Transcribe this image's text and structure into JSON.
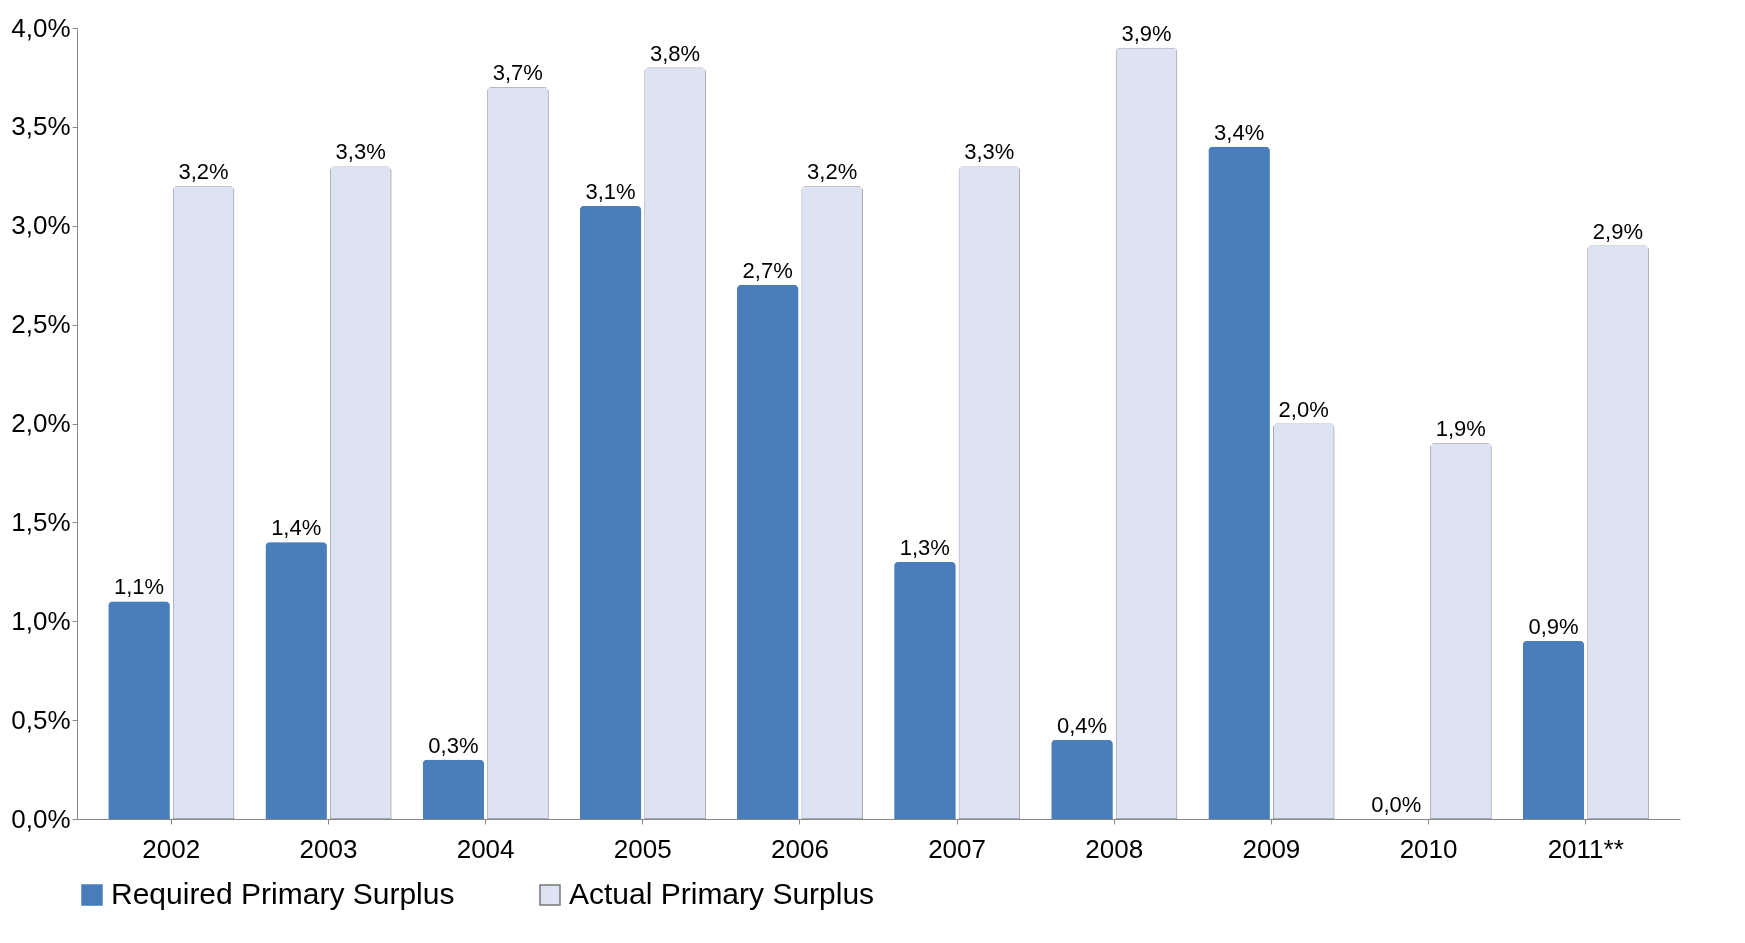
{
  "chart_data": {
    "type": "bar",
    "categories": [
      "2002",
      "2003",
      "2004",
      "2005",
      "2006",
      "2007",
      "2008",
      "2009",
      "2010",
      "2011**"
    ],
    "series": [
      {
        "name": "Required Primary Surplus",
        "color": "#4a7ebb",
        "values": [
          1.1,
          1.4,
          0.3,
          3.1,
          2.7,
          1.3,
          0.4,
          3.4,
          0.0,
          0.9
        ],
        "value_labels": [
          "1,1%",
          "1,4%",
          "0,3%",
          "3,1%",
          "2,7%",
          "1,3%",
          "0,4%",
          "3,4%",
          "0,0%",
          "0,9%"
        ]
      },
      {
        "name": "Actual Primary Surplus",
        "color": "#dde3f2",
        "values": [
          3.2,
          3.3,
          3.7,
          3.8,
          3.2,
          3.3,
          3.9,
          2.0,
          1.9,
          2.9
        ],
        "value_labels": [
          "3,2%",
          "3,3%",
          "3,7%",
          "3,8%",
          "3,2%",
          "3,3%",
          "3,9%",
          "2,0%",
          "1,9%",
          "2,9%"
        ]
      }
    ],
    "ylim": [
      0,
      4
    ],
    "yticks": [
      {
        "value": 0,
        "label": "0,0%"
      },
      {
        "value": 0.5,
        "label": "0,5%"
      },
      {
        "value": 1,
        "label": "1,0%"
      },
      {
        "value": 1.5,
        "label": "1,5%"
      },
      {
        "value": 2,
        "label": "2,0%"
      },
      {
        "value": 2.5,
        "label": "2,5%"
      },
      {
        "value": 3,
        "label": "3,0%"
      },
      {
        "value": 3.5,
        "label": "3,5%"
      },
      {
        "value": 4,
        "label": "4,0%"
      }
    ],
    "grid": false,
    "legend": "bottom"
  }
}
